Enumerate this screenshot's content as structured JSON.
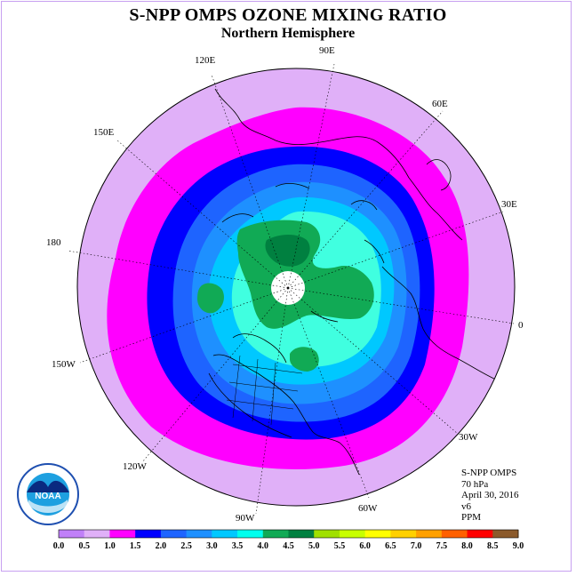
{
  "title": "S-NPP OMPS OZONE MIXING RATIO",
  "subtitle": "Northern Hemisphere",
  "longitude_labels": [
    "90E",
    "60E",
    "30E",
    "0",
    "30W",
    "60W",
    "90W",
    "120W",
    "150W",
    "180",
    "150E",
    "120E"
  ],
  "info": {
    "instrument": "S-NPP OMPS",
    "level": "70 hPa",
    "date": "April 30, 2016",
    "version": "v6",
    "units": "PPM"
  },
  "logo_text": "NOAA",
  "colorbar": {
    "ticks": [
      "0.0",
      "0.5",
      "1.0",
      "1.5",
      "2.0",
      "2.5",
      "3.0",
      "3.5",
      "4.0",
      "4.5",
      "5.0",
      "5.5",
      "6.0",
      "6.5",
      "7.0",
      "7.5",
      "8.0",
      "8.5",
      "9.0"
    ],
    "colors": [
      "#c080f8",
      "#e0b0f8",
      "#ff00ff",
      "#0000ff",
      "#1e64ff",
      "#1e90ff",
      "#00c8ff",
      "#00ffee",
      "#11aa55",
      "#008040",
      "#a0e000",
      "#c8ff00",
      "#ffff00",
      "#ffd000",
      "#ffa000",
      "#ff6000",
      "#ff0000",
      "#8b5a2b"
    ]
  },
  "colors": {
    "background_disk": "#e0b0f8",
    "magenta": "#ff00ff",
    "blue": "#0000ff",
    "mid_blue": "#1e64ff",
    "light_blue": "#1e90ff",
    "sky": "#00c8ff",
    "cyan": "#40ffe0",
    "green": "#11aa55",
    "dark_green": "#008040",
    "pole_hole": "#ffffff"
  }
}
